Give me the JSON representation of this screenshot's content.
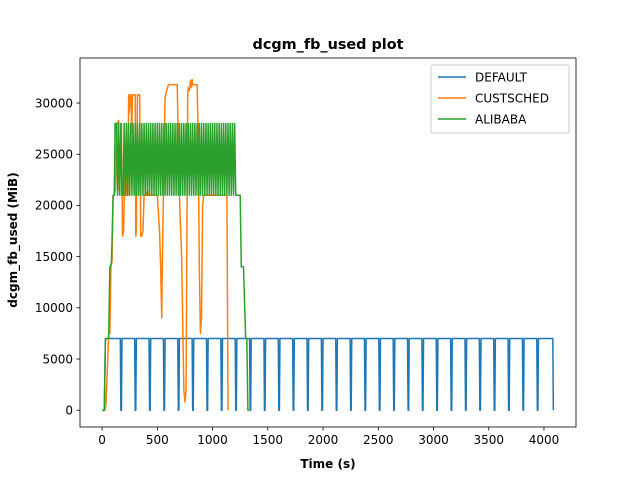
{
  "chart_data": {
    "type": "line",
    "title": "dcgm_fb_used plot",
    "xlabel": "Time (s)",
    "ylabel": "dcgm_fb_used (MiB)",
    "xlim": [
      -200,
      4290
    ],
    "ylim": [
      -1640,
      34400
    ],
    "xticks": [
      0,
      500,
      1000,
      1500,
      2000,
      2500,
      3000,
      3500,
      4000
    ],
    "yticks": [
      0,
      5000,
      10000,
      15000,
      20000,
      25000,
      30000
    ],
    "grid": false,
    "legend_position": "top-right",
    "series": [
      {
        "name": "DEFAULT",
        "color": "#1f77b4",
        "x": [
          0,
          20,
          30,
          40,
          165,
          170,
          175,
          180,
          295,
          300,
          305,
          310,
          425,
          430,
          435,
          440,
          555,
          560,
          565,
          570,
          685,
          690,
          695,
          700,
          815,
          820,
          825,
          830,
          945,
          950,
          955,
          960,
          1075,
          1080,
          1085,
          1090,
          1205,
          1210,
          1215,
          1220,
          1335,
          1340,
          1345,
          1350,
          1465,
          1470,
          1475,
          1480,
          1595,
          1600,
          1605,
          1610,
          1725,
          1730,
          1735,
          1740,
          1855,
          1860,
          1865,
          1870,
          1985,
          1990,
          1995,
          2000,
          2115,
          2120,
          2125,
          2130,
          2245,
          2250,
          2255,
          2260,
          2375,
          2380,
          2385,
          2390,
          2505,
          2510,
          2515,
          2520,
          2635,
          2640,
          2645,
          2650,
          2765,
          2770,
          2775,
          2780,
          2895,
          2900,
          2905,
          2910,
          3025,
          3030,
          3035,
          3040,
          3155,
          3160,
          3165,
          3170,
          3285,
          3290,
          3295,
          3300,
          3415,
          3420,
          3425,
          3430,
          3545,
          3550,
          3555,
          3560,
          3675,
          3680,
          3685,
          3690,
          3805,
          3810,
          3815,
          3820,
          3935,
          3940,
          3945,
          3950,
          4080,
          4085
        ],
        "y": [
          0,
          0,
          7000,
          7000,
          7000,
          0,
          0,
          7000,
          7000,
          0,
          0,
          7000,
          7000,
          0,
          0,
          7000,
          7000,
          0,
          0,
          7000,
          7000,
          0,
          0,
          7000,
          7000,
          0,
          0,
          7000,
          7000,
          0,
          0,
          7000,
          7000,
          0,
          0,
          7000,
          7000,
          0,
          0,
          7000,
          7000,
          0,
          0,
          7000,
          7000,
          0,
          0,
          7000,
          7000,
          0,
          0,
          7000,
          7000,
          0,
          0,
          7000,
          7000,
          0,
          0,
          7000,
          7000,
          0,
          0,
          7000,
          7000,
          0,
          0,
          7000,
          7000,
          0,
          0,
          7000,
          7000,
          0,
          0,
          7000,
          7000,
          0,
          0,
          7000,
          7000,
          0,
          0,
          7000,
          7000,
          0,
          0,
          7000,
          7000,
          0,
          0,
          7000,
          7000,
          0,
          0,
          7000,
          7000,
          0,
          0,
          7000,
          7000,
          0,
          0,
          7000,
          7000,
          0,
          0,
          7000,
          7000,
          0,
          0,
          7000,
          7000,
          0,
          0,
          7000,
          7000,
          0,
          0,
          7000,
          7000,
          0,
          0,
          7000,
          7000,
          0
        ]
      },
      {
        "name": "CUSTSCHED",
        "color": "#ff7f0e",
        "x": [
          0,
          25,
          35,
          60,
          70,
          80,
          90,
          100,
          110,
          120,
          135,
          150,
          155,
          165,
          175,
          185,
          195,
          205,
          215,
          225,
          235,
          240,
          245,
          255,
          262,
          268,
          275,
          285,
          300,
          305,
          310,
          320,
          340,
          350,
          360,
          370,
          380,
          390,
          400,
          410,
          420,
          440,
          470,
          500,
          520,
          530,
          540,
          545,
          555,
          570,
          585,
          600,
          620,
          640,
          660,
          680,
          700,
          720,
          740,
          750,
          760,
          770,
          775,
          780,
          790,
          800,
          810,
          815,
          820,
          830,
          840,
          850,
          860,
          870,
          880,
          890,
          900,
          910,
          920,
          930,
          940,
          950,
          960,
          970,
          980,
          990,
          1000,
          1010,
          1020,
          1030,
          1050,
          1080,
          1110,
          1130,
          1140
        ],
        "y": [
          0,
          0,
          500,
          7500,
          7500,
          14000,
          14500,
          21000,
          21000,
          21500,
          28000,
          28300,
          21500,
          24000,
          28000,
          17000,
          17500,
          24000,
          24000,
          21000,
          21000,
          30800,
          29000,
          30800,
          30800,
          27000,
          30800,
          30800,
          30800,
          17000,
          17500,
          30800,
          30800,
          17000,
          17000,
          17500,
          21000,
          21000,
          21000,
          21500,
          21000,
          21000,
          21000,
          21000,
          17500,
          14000,
          9000,
          14000,
          21000,
          30500,
          31200,
          31800,
          31800,
          31800,
          31800,
          31800,
          21000,
          15000,
          2000,
          800,
          2000,
          21000,
          31000,
          31500,
          31200,
          32200,
          31500,
          32300,
          31800,
          31800,
          31800,
          31800,
          31800,
          27000,
          14000,
          7500,
          9000,
          20000,
          21000,
          21000,
          21000,
          21000,
          21000,
          21000,
          21000,
          21000,
          21000,
          21000,
          21000,
          21000,
          21000,
          21000,
          21000,
          21000,
          0
        ]
      },
      {
        "name": "ALIBABA",
        "color": "#2ca02c",
        "x": [
          0,
          20,
          30,
          45,
          60,
          70,
          75,
          85,
          100,
          110,
          118,
          130,
          140,
          150,
          160,
          170,
          180,
          190,
          200,
          210,
          220,
          230,
          240,
          250,
          260,
          270,
          280,
          290,
          300,
          310,
          320,
          330,
          340,
          350,
          360,
          370,
          380,
          390,
          400,
          410,
          420,
          430,
          440,
          450,
          460,
          470,
          480,
          490,
          500,
          510,
          520,
          530,
          540,
          550,
          560,
          570,
          580,
          590,
          600,
          610,
          620,
          630,
          640,
          650,
          660,
          670,
          680,
          690,
          700,
          710,
          720,
          730,
          740,
          750,
          760,
          770,
          780,
          790,
          800,
          810,
          820,
          830,
          840,
          850,
          860,
          870,
          880,
          890,
          900,
          910,
          920,
          930,
          940,
          950,
          960,
          970,
          980,
          990,
          1000,
          1010,
          1020,
          1030,
          1040,
          1050,
          1060,
          1070,
          1080,
          1090,
          1100,
          1110,
          1120,
          1130,
          1140,
          1150,
          1160,
          1170,
          1180,
          1190,
          1200,
          1210,
          1220,
          1230,
          1240,
          1250,
          1260,
          1280,
          1300,
          1310,
          1320,
          1330
        ],
        "y": [
          0,
          0,
          7000,
          7000,
          7000,
          14000,
          14000,
          14500,
          21000,
          21000,
          28000,
          28000,
          21000,
          28000,
          21000,
          28000,
          21000,
          21000,
          28000,
          21000,
          28000,
          21000,
          28000,
          21000,
          28000,
          21000,
          28000,
          21000,
          28000,
          21000,
          28000,
          21000,
          28000,
          21000,
          28000,
          21000,
          28000,
          21000,
          28000,
          21000,
          28000,
          21000,
          28000,
          21000,
          28000,
          21000,
          28000,
          21000,
          28000,
          21000,
          28000,
          21000,
          28000,
          21000,
          28000,
          21000,
          28000,
          21000,
          28000,
          21000,
          28000,
          21000,
          28000,
          21000,
          28000,
          21000,
          28000,
          21000,
          28000,
          21000,
          28000,
          21000,
          28000,
          21000,
          28000,
          21000,
          28000,
          21000,
          28000,
          21000,
          28000,
          21000,
          28000,
          21000,
          28000,
          21000,
          28000,
          21000,
          28000,
          21000,
          28000,
          21000,
          28000,
          21000,
          28000,
          21000,
          28000,
          21000,
          28000,
          21000,
          28000,
          21000,
          28000,
          21000,
          28000,
          21000,
          28000,
          21000,
          28000,
          21000,
          28000,
          21000,
          28000,
          21000,
          28000,
          21000,
          28000,
          21000,
          28000,
          21000,
          21000,
          21000,
          21000,
          21000,
          14000,
          14000,
          7000,
          7000,
          0,
          0
        ]
      }
    ]
  }
}
